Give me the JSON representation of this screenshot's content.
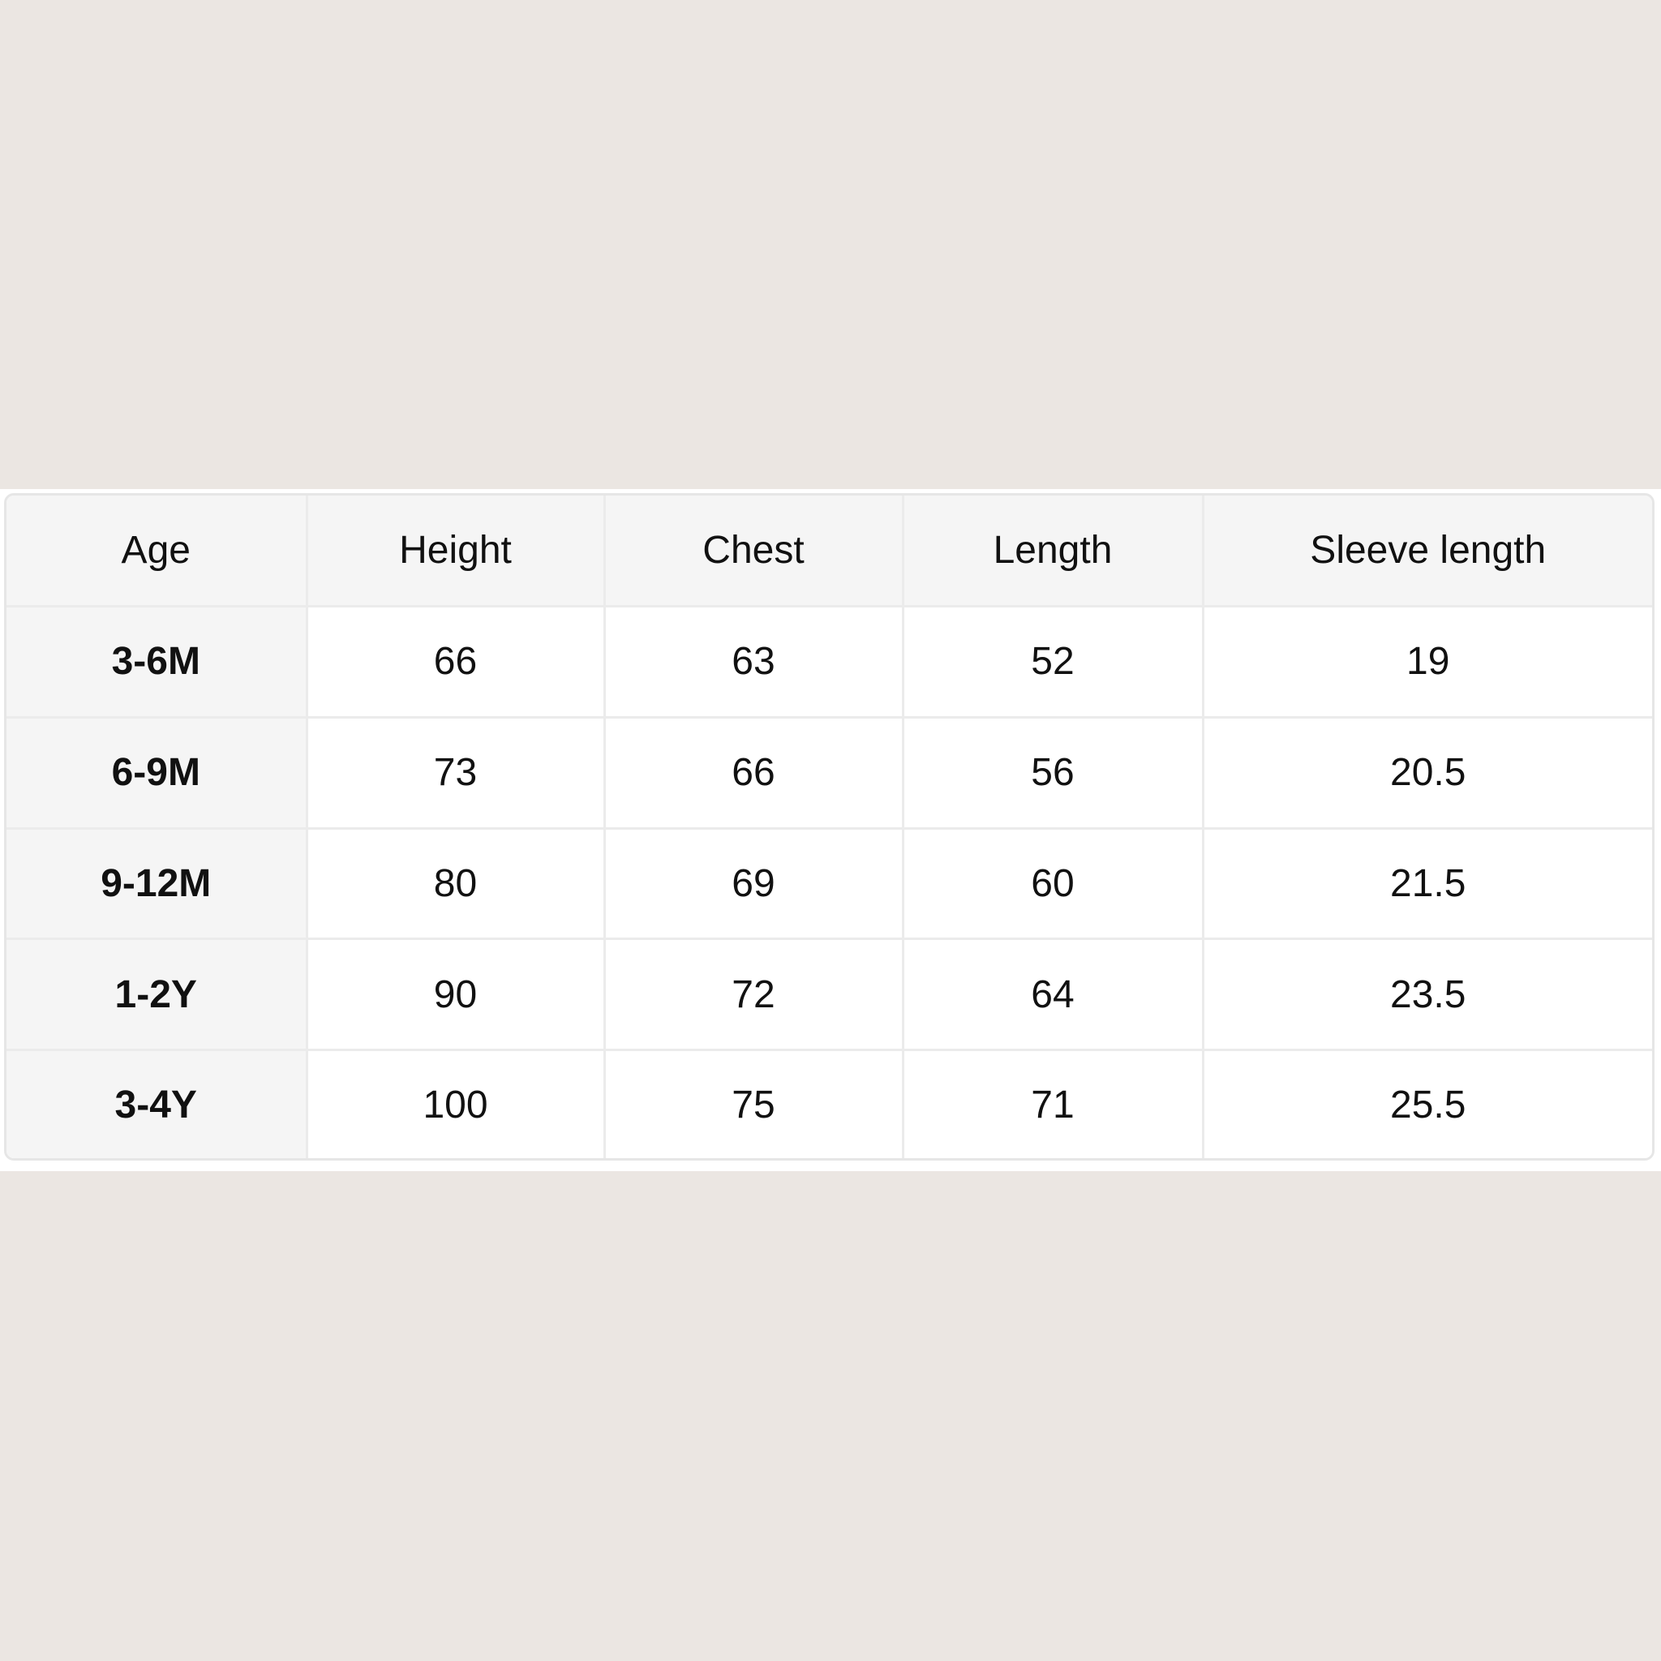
{
  "table": {
    "headers": [
      "Age",
      "Height",
      "Chest",
      "Length",
      "Sleeve length"
    ],
    "rows": [
      [
        "3-6M",
        "66",
        "63",
        "52",
        "19"
      ],
      [
        "6-9M",
        "73",
        "66",
        "56",
        "20.5"
      ],
      [
        "9-12M",
        "80",
        "69",
        "60",
        "21.5"
      ],
      [
        "1-2Y",
        "90",
        "72",
        "64",
        "23.5"
      ],
      [
        "3-4Y",
        "100",
        "75",
        "71",
        "25.5"
      ]
    ]
  },
  "colors": {
    "background": "#ebe6e2",
    "header_fill": "#f5f5f5",
    "border": "#ebebeb"
  }
}
